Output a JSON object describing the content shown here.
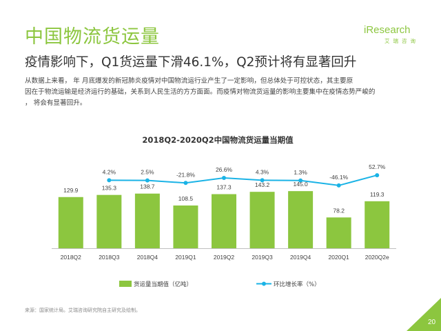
{
  "header": {
    "title": "中国物流货运量",
    "subtitle": "疫情影响下，Q1货运量下滑46.1%，Q2预计将有显著回升",
    "logo": {
      "main": "iResearch",
      "sub": "艾瑞咨询"
    }
  },
  "body": {
    "lines": [
      "从数据上来看，     年  月底爆发的新冠肺炎疫情对中国物流运行业产生了一定影响，但总体处于可控状态，其主要原",
      "因在于物流运输是经济运行的基础，关系到人民生活的方方面面。而疫情对物流货运量的影响主要集中在疫情态势严峻的",
      "      ，  将会有显著回升。"
    ]
  },
  "footnote": "来源：国家统计局。艾瑞咨询研究院自主研究及绘制。",
  "page_number": "20",
  "colors": {
    "accent": "#8CC63F",
    "bar": "#8CC63F",
    "line": "#1AB3E6",
    "axis": "#BFBFBF",
    "text": "#333333"
  },
  "chart_data": {
    "type": "bar",
    "title": "2018Q2-2020Q2中国物流货运量当期值",
    "categories": [
      "2018Q2",
      "2018Q3",
      "2018Q4",
      "2019Q1",
      "2019Q2",
      "2019Q3",
      "2019Q4",
      "2020Q1",
      "2020Q2e"
    ],
    "series": [
      {
        "name": "货运量当期值（亿吨）",
        "type": "bar",
        "values": [
          129.9,
          135.3,
          138.7,
          108.5,
          137.3,
          143.2,
          145.0,
          78.2,
          119.3
        ],
        "labels": [
          "129.9",
          "135.3",
          "138.7",
          "108.5",
          "137.3",
          "143.2",
          "145.0",
          "78.2",
          "119.3"
        ]
      },
      {
        "name": "环比增长率（%）",
        "type": "line",
        "values": [
          null,
          4.2,
          2.5,
          -21.8,
          26.6,
          4.3,
          1.3,
          -46.1,
          52.7
        ],
        "labels": [
          "",
          "4.2%",
          "2.5%",
          "-21.8%",
          "26.6%",
          "4.3%",
          "1.3%",
          "-46.1%",
          "52.7%"
        ]
      }
    ],
    "legend_position": "bottom",
    "grid": false
  }
}
